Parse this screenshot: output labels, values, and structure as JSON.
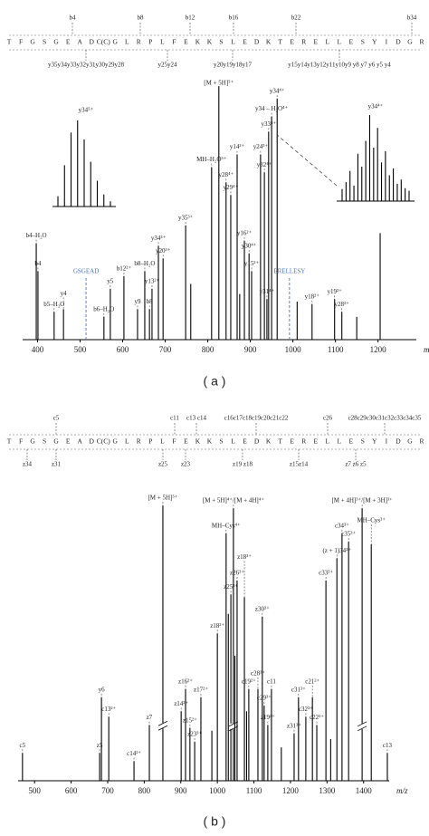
{
  "chart_data": [
    {
      "type": "spectrum",
      "panel_label": "( a )",
      "sequence": [
        "T",
        "F",
        "G",
        "S",
        "G",
        "E",
        "A",
        "D",
        "C(C)",
        "G",
        "L",
        "R",
        "P",
        "L",
        "F",
        "E",
        "K",
        "K",
        "S",
        "L",
        "E",
        "D",
        "K",
        "T",
        "E",
        "R",
        "E",
        "L",
        "L",
        "E",
        "S",
        "Y",
        "I",
        "D",
        "G",
        "R"
      ],
      "top_ions": [
        "b4",
        "b8",
        "b12",
        "b16",
        "b22",
        "b34"
      ],
      "bottom_ions": [
        "y35y34y33y32y31y30y29y28",
        "y25y24",
        "y20y19y18y17",
        "y15y14y13y12y11y10y9 y8 y7 y6 y5 y4"
      ],
      "xlabel": "m/z",
      "xlim": [
        365,
        1290
      ],
      "xticks": [
        400,
        500,
        600,
        700,
        800,
        900,
        1000,
        1100,
        1200
      ],
      "peaks": [
        {
          "label": "b4–H₂O",
          "mz": 397,
          "height": 38
        },
        {
          "label": "b4",
          "mz": 401,
          "height": 27
        },
        {
          "label": "b5–H₂O",
          "mz": 439,
          "height": 11
        },
        {
          "label": "y4",
          "mz": 461,
          "height": 12
        },
        {
          "label": "b6–H₂O",
          "mz": 556,
          "height": 9
        },
        {
          "label": "y5",
          "mz": 571,
          "height": 20
        },
        {
          "label": "b12²⁺",
          "mz": 603,
          "height": 25
        },
        {
          "label": "y9",
          "mz": 635,
          "height": 12
        },
        {
          "label": "b8–H₂O",
          "mz": 652,
          "height": 27
        },
        {
          "label": "b8",
          "mz": 663,
          "height": 12
        },
        {
          "label": "y13²⁺",
          "mz": 669,
          "height": 20
        },
        {
          "label": "y34³⁺",
          "mz": 684,
          "height": 37
        },
        {
          "label": "y20³⁺",
          "mz": 695,
          "height": 32
        },
        {
          "label": "y35³⁺",
          "mz": 748,
          "height": 45
        },
        {
          "label": "MH–H₂O⁵⁺",
          "mz": 809,
          "height": 68
        },
        {
          "label": "[M + 5H]⁵⁺",
          "mz": 826,
          "height": 100
        },
        {
          "label": "y28⁴⁺",
          "mz": 843,
          "height": 62
        },
        {
          "label": "y29⁴⁺",
          "mz": 854,
          "height": 57
        },
        {
          "label": "y14²⁺",
          "mz": 869,
          "height": 73
        },
        {
          "label": "y16²⁺",
          "mz": 886,
          "height": 39
        },
        {
          "label": "y30⁴⁺",
          "mz": 897,
          "height": 34
        },
        {
          "label": "y15²⁺",
          "mz": 903,
          "height": 27
        },
        {
          "label": "y24³⁺",
          "mz": 924,
          "height": 73
        },
        {
          "label": "y32⁴⁺",
          "mz": 933,
          "height": 66
        },
        {
          "label": "y31⁴⁺",
          "mz": 939,
          "height": 16
        },
        {
          "label": "y33⁴⁺",
          "mz": 943,
          "height": 82
        },
        {
          "label": "y34 – H₂O⁴⁺",
          "mz": 950,
          "height": 88
        },
        {
          "label": "y34⁴⁺",
          "mz": 963,
          "height": 95
        },
        {
          "label": "y18²⁺",
          "mz": 1045,
          "height": 14
        },
        {
          "label": "y19²⁺",
          "mz": 1098,
          "height": 16
        },
        {
          "label": "y28³⁺",
          "mz": 1115,
          "height": 11
        },
        {
          "mz": 1205,
          "height": 42
        },
        {
          "mz": 760,
          "height": 22
        },
        {
          "mz": 875,
          "height": 18
        },
        {
          "mz": 1010,
          "height": 15
        },
        {
          "mz": 1150,
          "height": 9
        }
      ],
      "markers": [
        {
          "label": "GSGEAD",
          "mz": 514,
          "color": "#4a72c0"
        },
        {
          "label": "ERELLESY",
          "mz": 992,
          "color": "#4a72c0"
        }
      ],
      "insets": [
        {
          "label": "y34⁵⁺",
          "values": [
            12,
            48,
            86,
            100,
            78,
            52,
            30,
            14,
            6
          ]
        },
        {
          "label": "y34⁴⁺",
          "values": [
            14,
            22,
            35,
            18,
            55,
            40,
            70,
            100,
            62,
            85,
            45,
            58,
            30,
            38,
            20,
            25,
            15,
            12
          ]
        }
      ]
    },
    {
      "type": "spectrum",
      "panel_label": "( b )",
      "sequence": [
        "T",
        "F",
        "G",
        "S",
        "G",
        "E",
        "A",
        "D",
        "C(C)",
        "G",
        "L",
        "R",
        "P",
        "L",
        "F",
        "E",
        "K",
        "K",
        "S",
        "L",
        "E",
        "D",
        "K",
        "T",
        "E",
        "R",
        "E",
        "L",
        "L",
        "E",
        "S",
        "Y",
        "I",
        "D",
        "G",
        "R"
      ],
      "top_ions": [
        "c5",
        "c11",
        "c13 c14",
        "c16c17c18c19c20c21c22",
        "c26",
        "c28c29c30c31c32c33c34c35"
      ],
      "bottom_ions": [
        "z34",
        "z31",
        "z25",
        "z23",
        "z19 z18",
        "z15z14",
        "z7 z6 z5"
      ],
      "xlabel": "m/z",
      "xlim": [
        455,
        1470
      ],
      "xticks": [
        500,
        600,
        700,
        800,
        900,
        1000,
        1100,
        1200,
        1300,
        1400
      ],
      "peaks": [
        {
          "label": "c5",
          "mz": 467,
          "height": 10
        },
        {
          "label": "z5",
          "mz": 678,
          "height": 10
        },
        {
          "label": "y6",
          "mz": 683,
          "height": 30
        },
        {
          "label": "c13²⁺",
          "mz": 703,
          "height": 23
        },
        {
          "label": "c14²⁺",
          "mz": 772,
          "height": 7
        },
        {
          "label": "z7",
          "mz": 814,
          "height": 20
        },
        {
          "label": "[M + 5H]⁵⁺",
          "mz": 851,
          "height": 99,
          "axis_break": true
        },
        {
          "label": "z14²⁺",
          "mz": 901,
          "height": 25
        },
        {
          "label": "z16²⁺",
          "mz": 913,
          "height": 33
        },
        {
          "label": "z15²⁺",
          "mz": 925,
          "height": 19
        },
        {
          "label": "z23³⁺",
          "mz": 938,
          "height": 14
        },
        {
          "label": "z17²⁺",
          "mz": 955,
          "height": 30
        },
        {
          "label": "z18²⁺",
          "mz": 1000,
          "height": 53
        },
        {
          "label": "MH–Cys⁴⁺",
          "mz": 1024,
          "height": 89
        },
        {
          "label": "z25³⁺",
          "mz": 1037,
          "height": 67
        },
        {
          "label": "[M + 5H]⁴⁺/[M + 4H]⁴⁺",
          "mz": 1044,
          "height": 98,
          "axis_break": true
        },
        {
          "label": "z26³⁺",
          "mz": 1054,
          "height": 72
        },
        {
          "label": "z18³⁺",
          "mz": 1074,
          "height": 66
        },
        {
          "label": "c19²⁺",
          "mz": 1086,
          "height": 33
        },
        {
          "label": "c28³⁺",
          "mz": 1111,
          "height": 33
        },
        {
          "label": "z30³⁺",
          "mz": 1123,
          "height": 59
        },
        {
          "label": "c29³⁺",
          "mz": 1128,
          "height": 27
        },
        {
          "label": "z19²⁺",
          "mz": 1138,
          "height": 20
        },
        {
          "label": "c11",
          "mz": 1148,
          "height": 33
        },
        {
          "label": "z31³⁺",
          "mz": 1210,
          "height": 17
        },
        {
          "label": "c31³⁺",
          "mz": 1222,
          "height": 30
        },
        {
          "label": "c32³⁺",
          "mz": 1242,
          "height": 23
        },
        {
          "label": "c21²⁺",
          "mz": 1260,
          "height": 30
        },
        {
          "label": "c22²⁺",
          "mz": 1272,
          "height": 20
        },
        {
          "label": "c33³⁺",
          "mz": 1297,
          "height": 72
        },
        {
          "label": "(z + 1)34³⁺",
          "mz": 1327,
          "height": 80
        },
        {
          "label": "c34³⁺",
          "mz": 1341,
          "height": 89
        },
        {
          "label": "c35³⁺",
          "mz": 1359,
          "height": 86
        },
        {
          "label": "[M + 4H]³⁺/[M + 3H]³⁺",
          "mz": 1396,
          "height": 98,
          "axis_break": true
        },
        {
          "label": "MH–Cys³⁺",
          "mz": 1421,
          "height": 85
        },
        {
          "label": "c13",
          "mz": 1465,
          "height": 10
        },
        {
          "mz": 1030,
          "height": 60
        },
        {
          "mz": 1048,
          "height": 45
        },
        {
          "mz": 1080,
          "height": 25
        },
        {
          "mz": 985,
          "height": 18
        },
        {
          "mz": 1175,
          "height": 12
        },
        {
          "mz": 1310,
          "height": 15
        }
      ]
    }
  ]
}
